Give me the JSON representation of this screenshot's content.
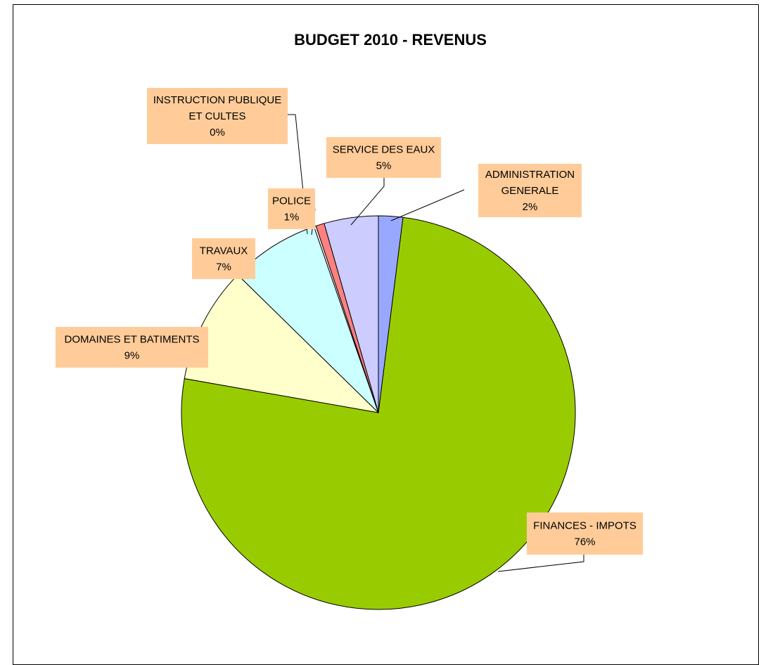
{
  "chart_data": {
    "type": "pie",
    "title": "BUDGET 2010 - REVENUS",
    "slices": [
      {
        "name": "ADMINISTRATION GENERALE",
        "value": 2,
        "label_lines": [
          "ADMINISTRATION",
          "GENERALE",
          "2%"
        ],
        "color": "#99A8FF"
      },
      {
        "name": "FINANCES - IMPOTS",
        "value": 76,
        "label_lines": [
          "FINANCES - IMPOTS",
          "76%"
        ],
        "color": "#99CC00"
      },
      {
        "name": "DOMAINES ET BATIMENTS",
        "value": 9,
        "label_lines": [
          "DOMAINES ET BATIMENTS",
          "9%"
        ],
        "color": "#FFFFCC"
      },
      {
        "name": "TRAVAUX",
        "value": 7,
        "label_lines": [
          "TRAVAUX",
          "7%"
        ],
        "color": "#CCFFFF"
      },
      {
        "name": "INSTRUCTION PUBLIQUE ET CULTES",
        "value": 0,
        "label_lines": [
          "INSTRUCTION PUBLIQUE",
          "ET CULTES",
          "0%"
        ],
        "color": "#FFFFFF"
      },
      {
        "name": "POLICE",
        "value": 1,
        "label_lines": [
          "POLICE",
          "1%"
        ],
        "color": "#FF8080"
      },
      {
        "name": "SERVICE DES EAUX",
        "value": 5,
        "label_lines": [
          "SERVICE DES EAUX",
          "5%"
        ],
        "color": "#CCCCFF"
      }
    ],
    "label_box_color": "#FFCC99",
    "legend": "none"
  }
}
